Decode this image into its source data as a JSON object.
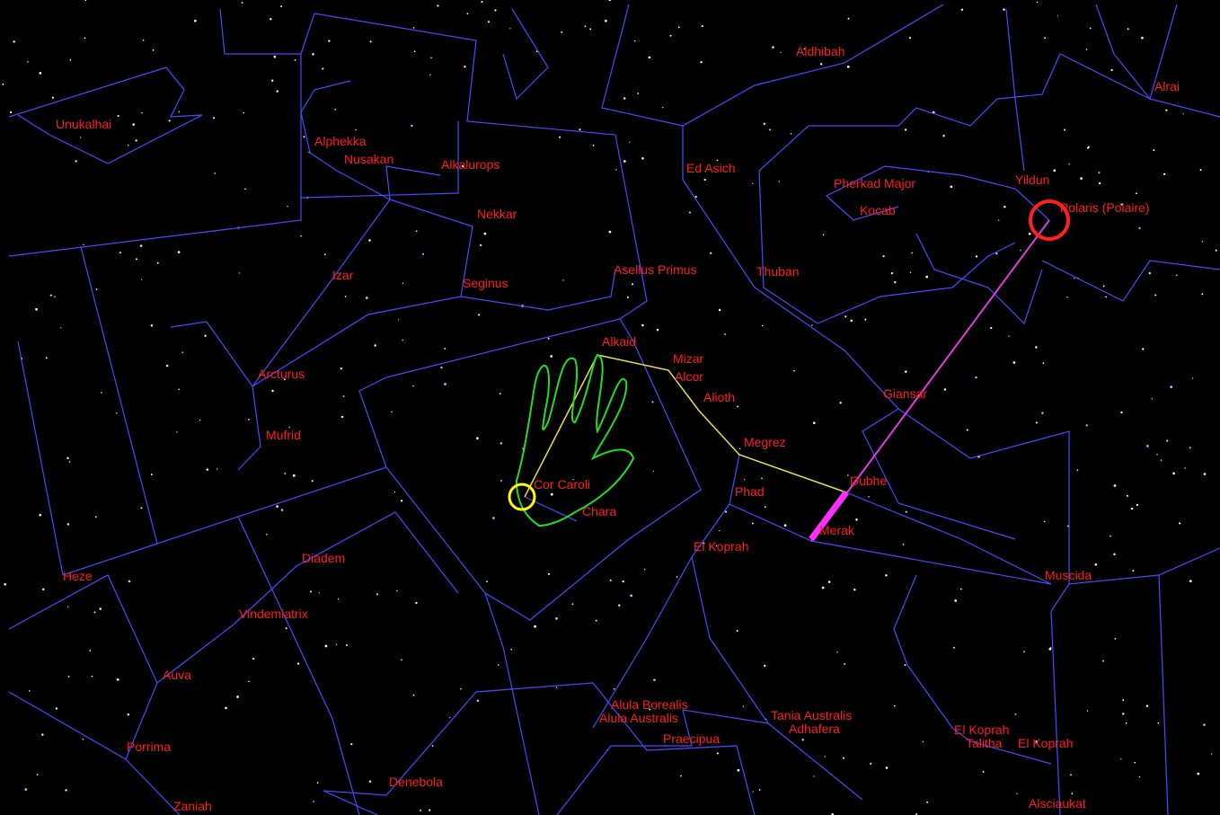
{
  "labels": [
    "Aldhibah",
    "Alrai",
    "Unukalhai",
    "Alphekka",
    "Nusakan",
    "Alkalurops",
    "Ed Asich",
    "Yildun",
    "Pherkad Major",
    "Polaris (Polaire)",
    "Kocab",
    "Nekkar",
    "Izar",
    "Asellus Primus",
    "Thuban",
    "Seginus",
    "Alkaid",
    "Mizar",
    "Alcor",
    "Arcturus",
    "Alioth",
    "Giansar",
    "Mufrid",
    "Megrez",
    "Dubhe",
    "Cor Caroli",
    "Phad",
    "Chara",
    "Merak",
    "El Koprah",
    "Diadem",
    "Heze",
    "Muscida",
    "Vindemiatrix",
    "Auva",
    "Alula Borealis",
    "Alula Australis",
    "Tania Australis",
    "Adhafera",
    "El Koprah",
    "Talitha",
    "El Koprah",
    "Praecipua",
    "Porrima",
    "Denebola",
    "Zaniah",
    "Alsciaukat"
  ]
}
